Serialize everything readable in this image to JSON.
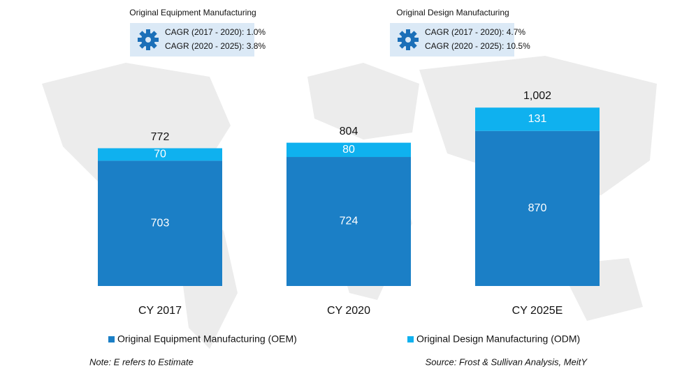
{
  "chart_data": {
    "type": "stacked_bar",
    "categories": [
      "CY 2017",
      "CY 2020",
      "CY 2025E"
    ],
    "series": [
      {
        "name": "Original Equipment Manufacturing (OEM)",
        "color": "#1b7fc6",
        "values": [
          703,
          724,
          870
        ]
      },
      {
        "name": "Original Design Manufacturing (ODM)",
        "color": "#0fb1ef",
        "values": [
          70,
          80,
          131
        ]
      }
    ],
    "totals": [
      772,
      804,
      1002
    ],
    "total_labels": [
      "772",
      "804",
      "1,002"
    ],
    "panels": [
      {
        "title": "Original Equipment Manufacturing",
        "lines": [
          "CAGR (2017 - 2020): 1.0%",
          "CAGR (2020 - 2025): 3.8%"
        ]
      },
      {
        "title": "Original Design Manufacturing",
        "lines": [
          "CAGR (2017 - 2020): 4.7%",
          "CAGR (2020 - 2025): 10.5%"
        ]
      }
    ],
    "note": "Note: E refers to Estimate",
    "source": "Source: Frost & Sullivan Analysis, MeitY"
  }
}
